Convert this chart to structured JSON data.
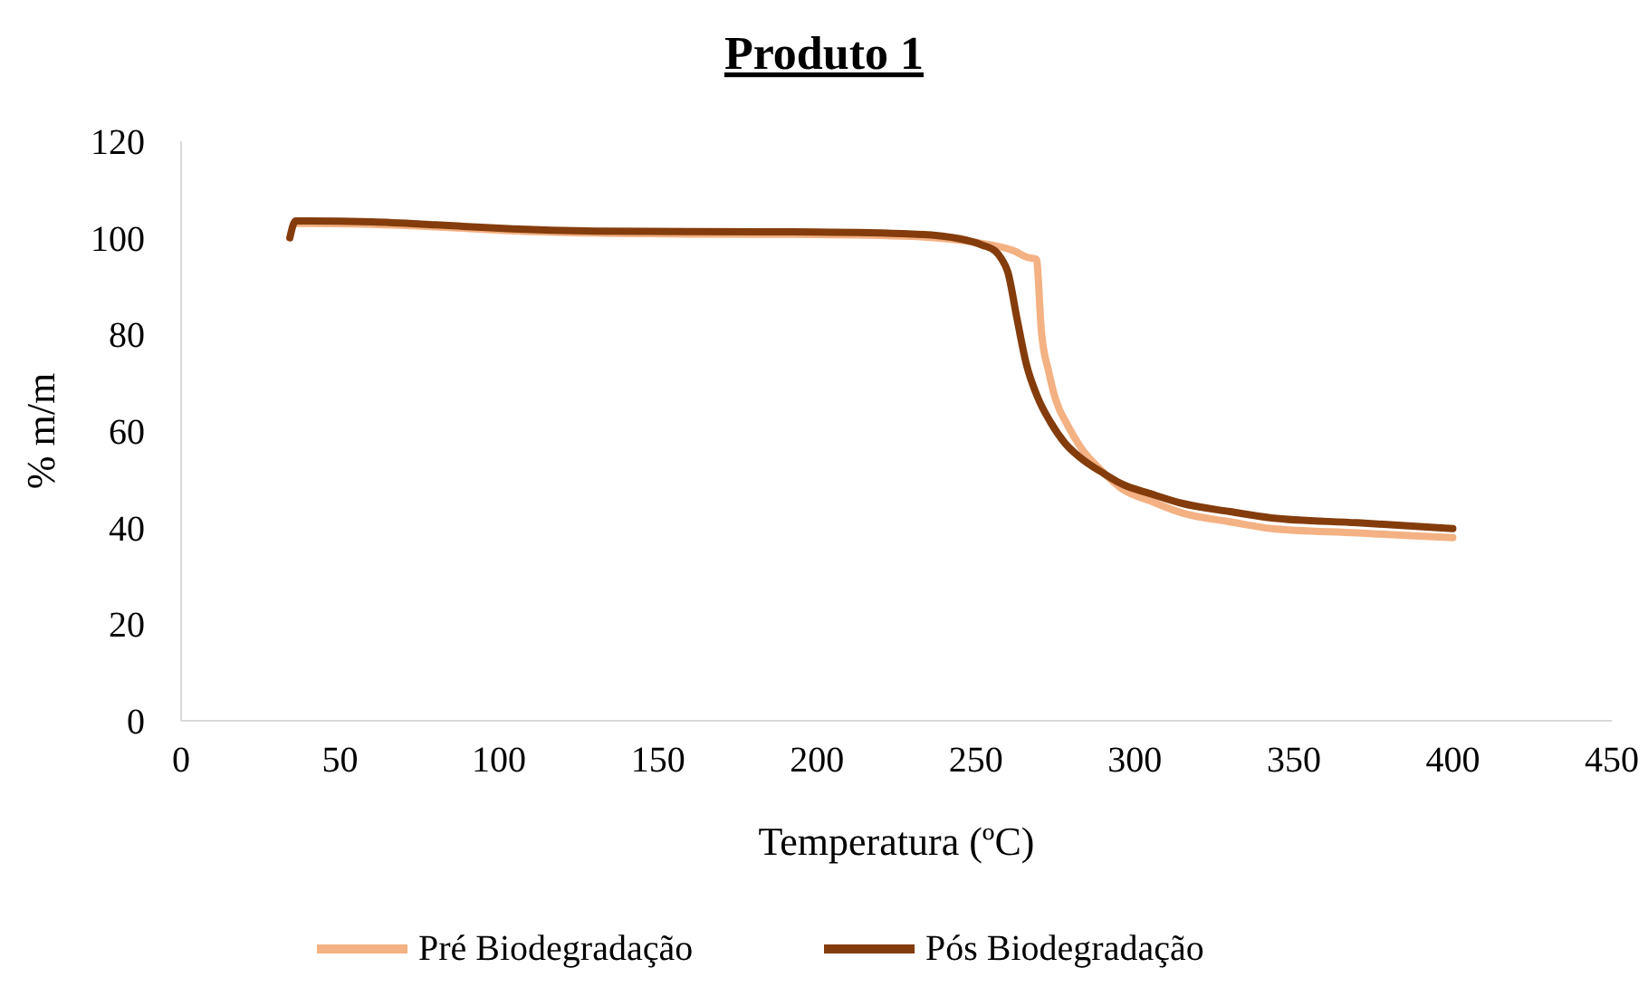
{
  "chart_data": {
    "type": "line",
    "title": "Produto 1",
    "xlabel": "Temperatura (ºC)",
    "ylabel": "% m/m",
    "xlim": [
      0,
      450
    ],
    "xticks": [
      0,
      50,
      100,
      150,
      200,
      250,
      300,
      350,
      400,
      450
    ],
    "ylim": [
      0,
      120
    ],
    "yticks": [
      0,
      20,
      40,
      60,
      80,
      100,
      120
    ],
    "grid": false,
    "legend": "bottom",
    "marker": "none",
    "line_style": "solid",
    "series": [
      {
        "name": "Pré Biodegradação",
        "color": "#f4b183",
        "x": [
          36,
          40,
          60,
          80,
          100,
          130,
          160,
          200,
          230,
          245,
          255,
          262,
          266,
          269,
          270.6,
          273,
          275,
          279,
          283,
          290,
          296,
          305,
          315,
          330,
          343,
          370,
          400
        ],
        "values": [
          103,
          103,
          102.8,
          102.3,
          101.6,
          101,
          100.8,
          100.7,
          100.3,
          99.5,
          98.5,
          97.3,
          96,
          95.6,
          80.6,
          72,
          66.7,
          61,
          56.6,
          51.5,
          48,
          45.5,
          43,
          41.2,
          39.8,
          38.9,
          37.9
        ]
      },
      {
        "name": "Pós Biodegradação",
        "color": "#843c0c",
        "x": [
          34.2,
          36,
          40,
          60,
          80,
          100,
          130,
          160,
          200,
          230,
          245,
          252,
          256,
          258,
          260,
          263,
          265.8,
          269.6,
          273.4,
          278,
          283,
          290,
          296,
          305,
          315,
          330,
          343,
          370,
          400
        ],
        "values": [
          100,
          103.5,
          103.5,
          103.3,
          102.7,
          102,
          101.4,
          101.3,
          101.2,
          100.8,
          99.8,
          98.5,
          97.3,
          95.7,
          93,
          83,
          74,
          66.7,
          61.9,
          57.5,
          54.4,
          51.3,
          49,
          47,
          45,
          43.3,
          42,
          41,
          39.8
        ]
      }
    ]
  }
}
